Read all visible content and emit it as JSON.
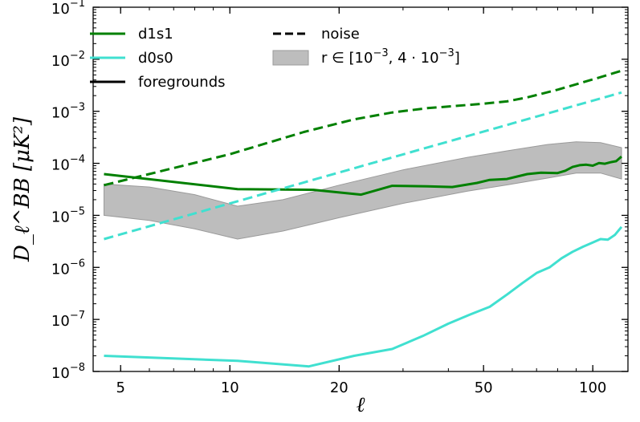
{
  "chart_data": {
    "type": "line",
    "x_scale": "log",
    "y_scale": "log",
    "xlabel": "ℓ",
    "ylabel": "D_ℓ^BB [μK²]",
    "xlim": [
      4.2,
      125
    ],
    "ylim": [
      1e-08,
      0.1
    ],
    "x_ticks": [
      {
        "value": 5,
        "label": "5"
      },
      {
        "value": 10,
        "label": "10"
      },
      {
        "value": 20,
        "label": "20"
      },
      {
        "value": 50,
        "label": "50"
      },
      {
        "value": 100,
        "label": "100"
      }
    ],
    "y_ticks": [
      {
        "value": 1e-08,
        "base": "10",
        "exp": "−8"
      },
      {
        "value": 1e-07,
        "base": "10",
        "exp": "−7"
      },
      {
        "value": 1e-06,
        "base": "10",
        "exp": "−6"
      },
      {
        "value": 1e-05,
        "base": "10",
        "exp": "−5"
      },
      {
        "value": 0.0001,
        "base": "10",
        "exp": "−4"
      },
      {
        "value": 0.001,
        "base": "10",
        "exp": "−3"
      },
      {
        "value": 0.01,
        "base": "10",
        "exp": "−2"
      },
      {
        "value": 0.1,
        "base": "10",
        "exp": "−1"
      }
    ],
    "series": [
      {
        "name": "d1s1",
        "role": "foregrounds",
        "color": "#008000",
        "dash": "solid",
        "x": [
          4.5,
          10.5,
          17,
          23,
          28,
          35,
          41,
          48,
          52,
          58,
          66,
          72,
          80,
          84,
          88,
          92,
          96,
          100,
          104,
          108,
          112,
          116,
          120
        ],
        "y": [
          6.2e-05,
          3.2e-05,
          3.1e-05,
          2.5e-05,
          3.7e-05,
          3.6e-05,
          3.5e-05,
          4.2e-05,
          4.8e-05,
          5e-05,
          6.2e-05,
          6.6e-05,
          6.5e-05,
          7.2e-05,
          8.5e-05,
          9.2e-05,
          9.4e-05,
          9e-05,
          0.000101,
          9.8e-05,
          0.000105,
          0.00011,
          0.000135
        ]
      },
      {
        "name": "d1s1 noise",
        "role": "noise",
        "color": "#008000",
        "dash": "dashed",
        "x": [
          4.5,
          10,
          16,
          22,
          28,
          35,
          41,
          50,
          58,
          66,
          80,
          100,
          120
        ],
        "y": [
          3.8e-05,
          0.00015,
          0.0004,
          0.0007,
          0.00095,
          0.00115,
          0.00125,
          0.0014,
          0.00155,
          0.00185,
          0.0026,
          0.0041,
          0.006
        ]
      },
      {
        "name": "d0s0",
        "role": "foregrounds",
        "color": "#40E0D0",
        "dash": "solid",
        "x": [
          4.5,
          10.5,
          16.5,
          22,
          28,
          34,
          40,
          46,
          52,
          58,
          64,
          70,
          76,
          82,
          88,
          94,
          100,
          105,
          110,
          115,
          120
        ],
        "y": [
          2e-08,
          1.6e-08,
          1.25e-08,
          2e-08,
          2.7e-08,
          4.8e-08,
          8.3e-08,
          1.25e-07,
          1.75e-07,
          3e-07,
          5e-07,
          7.8e-07,
          1e-06,
          1.5e-06,
          2e-06,
          2.5e-06,
          3e-06,
          3.5e-06,
          3.4e-06,
          4.2e-06,
          6e-06
        ]
      },
      {
        "name": "d0s0 noise",
        "role": "noise",
        "color": "#40E0D0",
        "dash": "dashed",
        "x": [
          4.5,
          120
        ],
        "y": [
          3.5e-06,
          0.0023
        ]
      }
    ],
    "band": {
      "name": "r range",
      "color": "#bdbdbd",
      "x": [
        4.5,
        6,
        8,
        10.5,
        14,
        20,
        30,
        45,
        60,
        75,
        90,
        105,
        120
      ],
      "upper": [
        4e-05,
        3.5e-05,
        2.5e-05,
        1.5e-05,
        2e-05,
        3.8e-05,
        7.5e-05,
        0.00013,
        0.00018,
        0.00023,
        0.00026,
        0.00025,
        0.0002
      ],
      "lower": [
        1e-05,
        8e-06,
        5.5e-06,
        3.5e-06,
        5e-06,
        9e-06,
        1.7e-05,
        2.9e-05,
        4e-05,
        5.2e-05,
        6.5e-05,
        6.5e-05,
        5e-05
      ]
    },
    "legend": {
      "position": "top",
      "entries": [
        {
          "label": "d1s1",
          "kind": "line",
          "color": "#008000",
          "dash": "solid"
        },
        {
          "label": "d0s0",
          "kind": "line",
          "color": "#40E0D0",
          "dash": "solid"
        },
        {
          "label": "foregrounds",
          "kind": "line",
          "color": "#000000",
          "dash": "solid"
        },
        {
          "label": "noise",
          "kind": "line",
          "color": "#000000",
          "dash": "dashed"
        },
        {
          "label_prefix": "r ∈ [10",
          "exp1": "−3",
          "label_mid": ", 4 · 10",
          "exp2": "−3",
          "label_suffix": "]",
          "kind": "patch",
          "color": "#bdbdbd"
        }
      ]
    }
  }
}
